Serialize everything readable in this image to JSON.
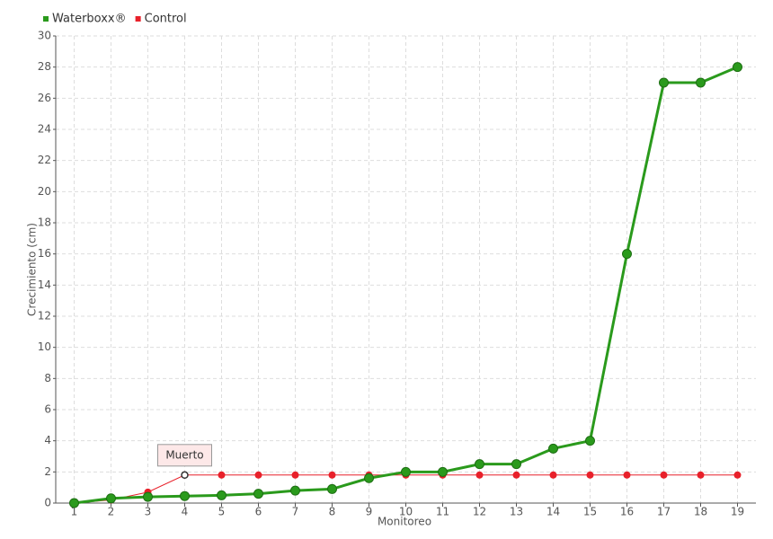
{
  "chart_data": {
    "type": "line",
    "categories": [
      "1",
      "2",
      "3",
      "4",
      "5",
      "6",
      "7",
      "8",
      "9",
      "10",
      "11",
      "12",
      "13",
      "14",
      "15",
      "16",
      "17",
      "18",
      "19"
    ],
    "series": [
      {
        "name": "Waterboxx®",
        "color": "#2a9a1c",
        "values": [
          0,
          0.3,
          0.4,
          0.45,
          0.5,
          0.6,
          0.8,
          0.9,
          1.6,
          2.0,
          2.0,
          2.5,
          2.5,
          3.5,
          4.0,
          16,
          27,
          27,
          28
        ]
      },
      {
        "name": "Control",
        "color": "#e8202a",
        "values": [
          0,
          0.2,
          0.7,
          1.8,
          1.8,
          1.8,
          1.8,
          1.8,
          1.8,
          1.8,
          1.8,
          1.8,
          1.8,
          1.8,
          1.8,
          1.8,
          1.8,
          1.8,
          1.8
        ]
      }
    ],
    "y_label": "Crecimiento (cm)",
    "x_label": "Monitoreo",
    "ylim": [
      0,
      30
    ],
    "yticks": [
      0,
      2,
      4,
      6,
      8,
      10,
      12,
      14,
      16,
      18,
      20,
      22,
      24,
      26,
      28,
      30
    ],
    "grid": true,
    "legend": "top-left",
    "annotations": [
      {
        "text": "Muerto",
        "category": "4"
      }
    ]
  }
}
